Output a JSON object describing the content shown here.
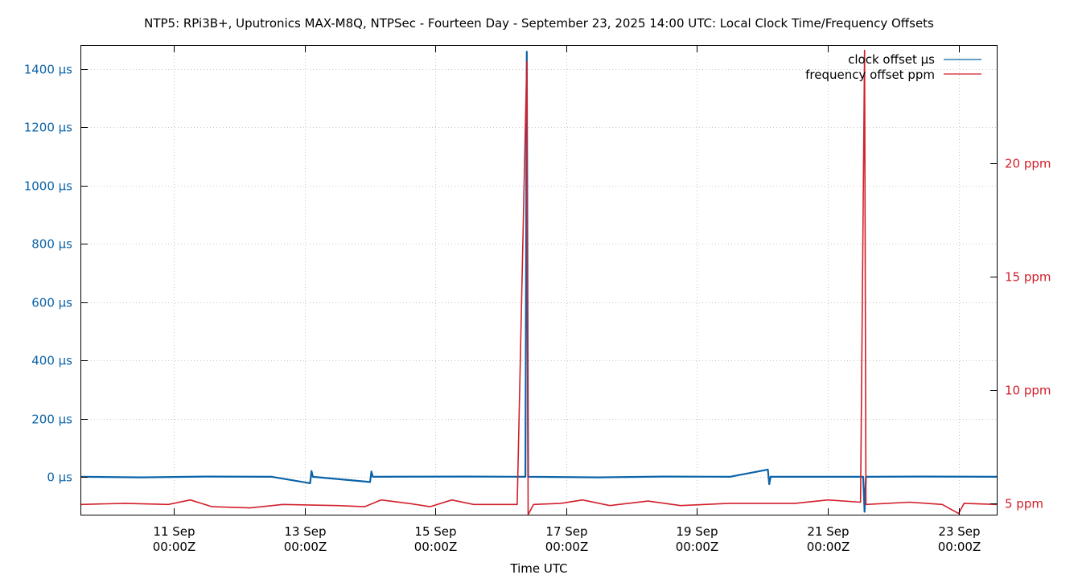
{
  "chart_data": {
    "type": "line",
    "title": "NTP5: RPi3B+, Uputronics MAX-M8Q, NTPSec - Fourteen Day - September 23, 2025 14:00 UTC: Local Clock Time/Frequency Offsets",
    "xlabel": "Time UTC",
    "x_range": [
      "2025-09-09T14:00Z",
      "2025-09-23T14:00Z"
    ],
    "x_ticks": [
      {
        "date": "2025-09-11T00:00Z",
        "label1": "11 Sep",
        "label2": "00:00Z"
      },
      {
        "date": "2025-09-13T00:00Z",
        "label1": "13 Sep",
        "label2": "00:00Z"
      },
      {
        "date": "2025-09-15T00:00Z",
        "label1": "15 Sep",
        "label2": "00:00Z"
      },
      {
        "date": "2025-09-17T00:00Z",
        "label1": "17 Sep",
        "label2": "00:00Z"
      },
      {
        "date": "2025-09-19T00:00Z",
        "label1": "19 Sep",
        "label2": "00:00Z"
      },
      {
        "date": "2025-09-21T00:00Z",
        "label1": "21 Sep",
        "label2": "00:00Z"
      },
      {
        "date": "2025-09-23T00:00Z",
        "label1": "23 Sep",
        "label2": "00:00Z"
      }
    ],
    "y_left": {
      "ylim": [
        -130,
        1480
      ],
      "ticks": [
        0,
        200,
        400,
        600,
        800,
        1000,
        1200,
        1400
      ],
      "labels": [
        "0 µs",
        "200 µs",
        "400 µs",
        "600 µs",
        "800 µs",
        "1000 µs",
        "1200 µs",
        "1400 µs"
      ]
    },
    "y_right": {
      "ylim": [
        4.5,
        25.2
      ],
      "ticks": [
        5,
        10,
        15,
        20
      ],
      "labels": [
        "5 ppm",
        "10 ppm",
        "15 ppm",
        "20 ppm"
      ]
    },
    "grid": true,
    "legend_position": "top-right",
    "series": [
      {
        "name": "clock offset µs",
        "axis": "left",
        "color": "#0a63a8",
        "points": [
          [
            "2025-09-09T14:00Z",
            0
          ],
          [
            "2025-09-10T12:00Z",
            -2
          ],
          [
            "2025-09-11T12:00Z",
            1
          ],
          [
            "2025-09-12T12:00Z",
            0
          ],
          [
            "2025-09-13T02:00Z",
            -22
          ],
          [
            "2025-09-13T02:30Z",
            20
          ],
          [
            "2025-09-13T03:00Z",
            0
          ],
          [
            "2025-09-14T00:00Z",
            -18
          ],
          [
            "2025-09-14T00:30Z",
            18
          ],
          [
            "2025-09-14T01:00Z",
            0
          ],
          [
            "2025-09-15T12:00Z",
            1
          ],
          [
            "2025-09-16T09:00Z",
            0
          ],
          [
            "2025-09-16T09:30Z",
            1460
          ],
          [
            "2025-09-16T10:00Z",
            0
          ],
          [
            "2025-09-17T12:00Z",
            -2
          ],
          [
            "2025-09-18T12:00Z",
            1
          ],
          [
            "2025-09-19T12:00Z",
            0
          ],
          [
            "2025-09-20T02:00Z",
            25
          ],
          [
            "2025-09-20T02:30Z",
            -25
          ],
          [
            "2025-09-20T03:00Z",
            0
          ],
          [
            "2025-09-21T13:00Z",
            0
          ],
          [
            "2025-09-21T13:30Z",
            -120
          ],
          [
            "2025-09-21T14:00Z",
            0
          ],
          [
            "2025-09-22T12:00Z",
            1
          ],
          [
            "2025-09-23T14:00Z",
            0
          ]
        ]
      },
      {
        "name": "frequency offset ppm",
        "axis": "right",
        "color": "#d21f2b",
        "points": [
          [
            "2025-09-09T14:00Z",
            4.95
          ],
          [
            "2025-09-10T06:00Z",
            5.0
          ],
          [
            "2025-09-10T22:00Z",
            4.95
          ],
          [
            "2025-09-11T06:00Z",
            5.15
          ],
          [
            "2025-09-11T14:00Z",
            4.85
          ],
          [
            "2025-09-12T04:00Z",
            4.8
          ],
          [
            "2025-09-12T16:00Z",
            4.95
          ],
          [
            "2025-09-13T12:00Z",
            4.9
          ],
          [
            "2025-09-13T22:00Z",
            4.85
          ],
          [
            "2025-09-14T04:00Z",
            5.15
          ],
          [
            "2025-09-14T14:00Z",
            5.0
          ],
          [
            "2025-09-14T22:00Z",
            4.85
          ],
          [
            "2025-09-15T06:00Z",
            5.15
          ],
          [
            "2025-09-15T14:00Z",
            4.95
          ],
          [
            "2025-09-16T06:00Z",
            4.95
          ],
          [
            "2025-09-16T09:30Z",
            24.5
          ],
          [
            "2025-09-16T10:00Z",
            4.5
          ],
          [
            "2025-09-16T12:00Z",
            4.95
          ],
          [
            "2025-09-16T22:00Z",
            5.0
          ],
          [
            "2025-09-17T06:00Z",
            5.15
          ],
          [
            "2025-09-17T16:00Z",
            4.9
          ],
          [
            "2025-09-18T06:00Z",
            5.1
          ],
          [
            "2025-09-18T18:00Z",
            4.9
          ],
          [
            "2025-09-19T12:00Z",
            5.0
          ],
          [
            "2025-09-20T12:00Z",
            5.0
          ],
          [
            "2025-09-21T00:00Z",
            5.15
          ],
          [
            "2025-09-21T12:00Z",
            5.05
          ],
          [
            "2025-09-21T13:30Z",
            25.0
          ],
          [
            "2025-09-21T14:00Z",
            4.95
          ],
          [
            "2025-09-22T06:00Z",
            5.05
          ],
          [
            "2025-09-22T18:00Z",
            4.95
          ],
          [
            "2025-09-23T00:00Z",
            4.55
          ],
          [
            "2025-09-23T02:00Z",
            5.0
          ],
          [
            "2025-09-23T14:00Z",
            4.95
          ]
        ]
      }
    ]
  }
}
